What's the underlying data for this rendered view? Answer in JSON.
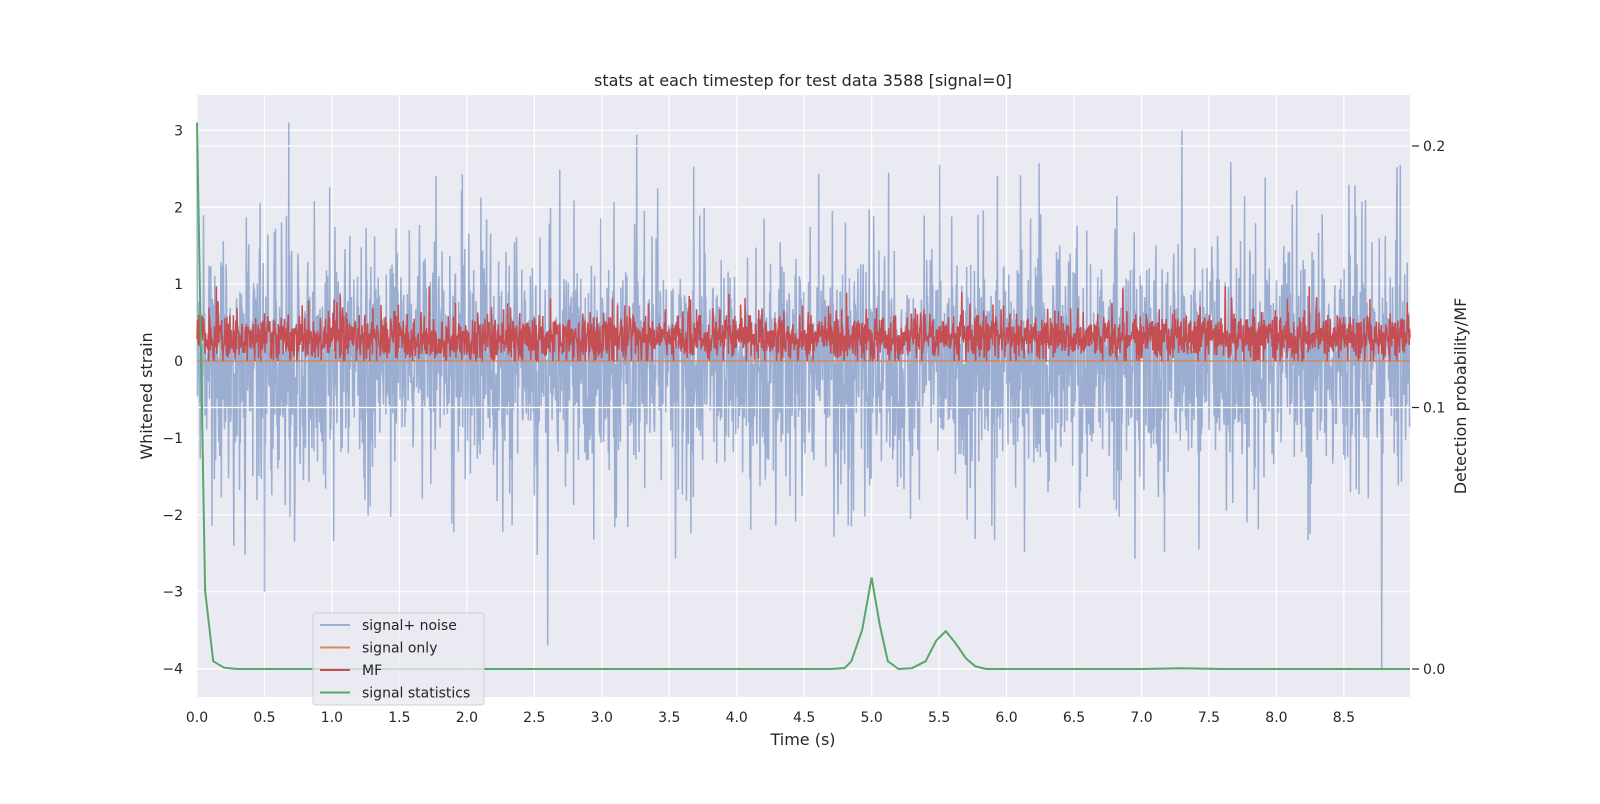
{
  "chart_data": {
    "type": "line",
    "title": "stats at each timestep for test data 3588 [signal=0]",
    "xlabel": "Time (s)",
    "ylabel": "Whitened strain",
    "ylabel_right": "Detection probability/MF",
    "xlim": [
      0,
      8.99
    ],
    "ylim": [
      -4.37,
      3.46
    ],
    "ylim_right": [
      -0.0107,
      0.2195
    ],
    "xticks": [
      "0.0",
      "0.5",
      "1.0",
      "1.5",
      "2.0",
      "2.5",
      "3.0",
      "3.5",
      "4.0",
      "4.5",
      "5.0",
      "5.5",
      "6.0",
      "6.5",
      "7.0",
      "7.5",
      "8.0",
      "8.5"
    ],
    "yticks": [
      "3",
      "2",
      "1",
      "0",
      "−1",
      "−2",
      "−3",
      "−4"
    ],
    "yticks_right": [
      "0.2",
      "0.1",
      "0.0"
    ],
    "grid": true,
    "legend_position": "lower-left",
    "series": [
      {
        "name": "signal+ noise",
        "color": "#4c72b0",
        "alpha": 0.5,
        "axis": "left",
        "note": "dense whitened noise, roughly within [-2.5, 3]",
        "peaks": [
          {
            "x": 0.68,
            "y": 3.1
          },
          {
            "x": 7.3,
            "y": 3.0
          },
          {
            "x": 8.78,
            "y": -4.0
          },
          {
            "x": 2.6,
            "y": -3.7
          },
          {
            "x": 0.5,
            "y": -3.0
          }
        ]
      },
      {
        "name": "signal only",
        "color": "#dd8452",
        "axis": "left",
        "x": [
          0,
          8.99
        ],
        "y": [
          0,
          0
        ]
      },
      {
        "name": "MF",
        "color": "#c44e52",
        "axis": "left",
        "note": "dense, roughly within [0, 0.95], mean about 0.3"
      },
      {
        "name": "signal statistics",
        "color": "#55a868",
        "axis": "right",
        "x": [
          0,
          0.06,
          0.12,
          0.2,
          0.3,
          4.7,
          4.8,
          4.85,
          4.93,
          5.0,
          5.06,
          5.12,
          5.2,
          5.3,
          5.4,
          5.48,
          5.55,
          5.62,
          5.7,
          5.77,
          5.85,
          7.0,
          7.3,
          7.6,
          8.99
        ],
        "y": [
          0.209,
          0.03,
          0.003,
          0.0005,
          0.0,
          0.0,
          0.0004,
          0.003,
          0.015,
          0.035,
          0.017,
          0.003,
          0.0,
          0.0003,
          0.003,
          0.011,
          0.0145,
          0.01,
          0.004,
          0.001,
          0.0,
          0.0,
          0.0003,
          0.0,
          0.0
        ]
      }
    ]
  }
}
